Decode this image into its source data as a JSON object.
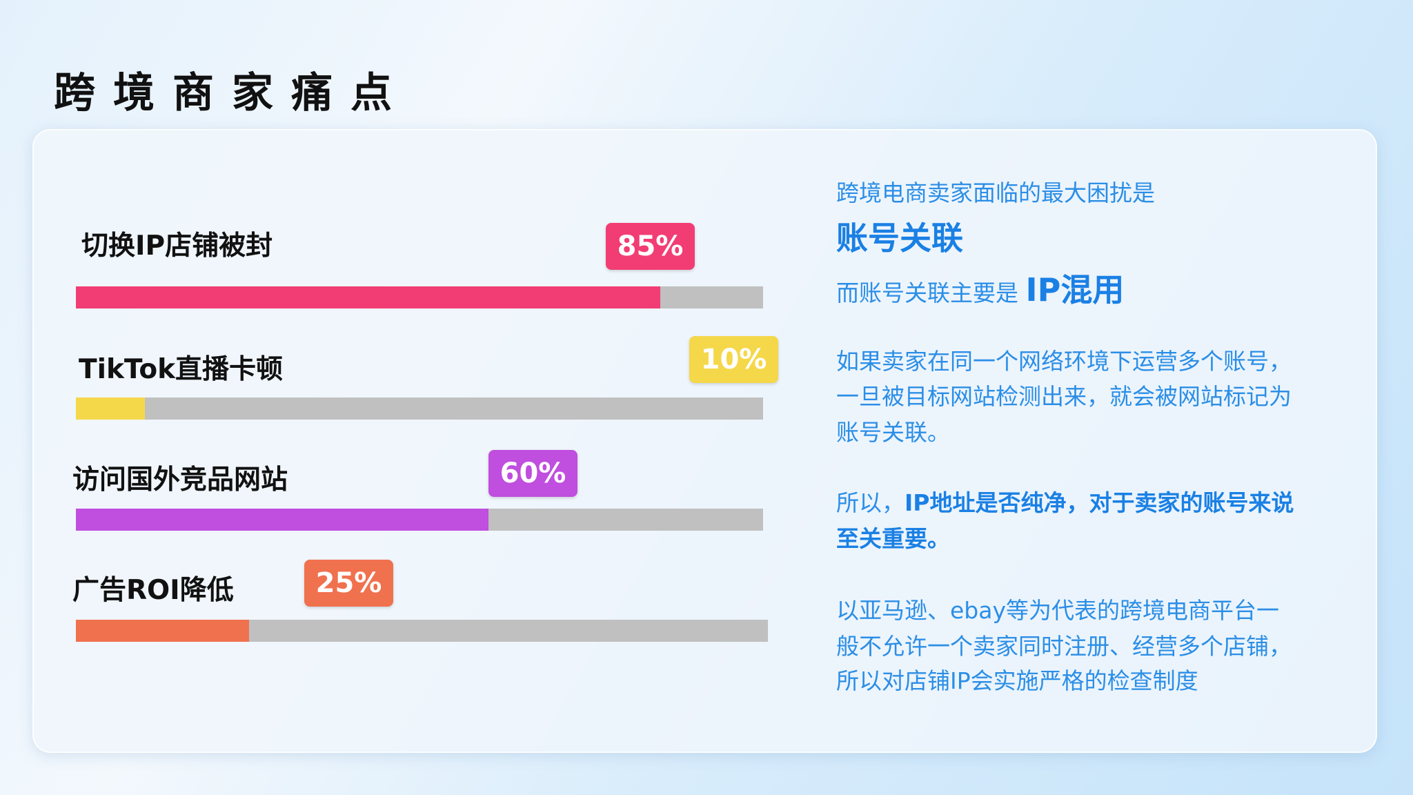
{
  "title": "跨境商家痛点",
  "items": [
    {
      "label": "切换IP店铺被封",
      "percent_label": "85%",
      "value": 85,
      "color": "#f23d74"
    },
    {
      "label": "TikTok直播卡顿",
      "percent_label": "10%",
      "value": 10,
      "color": "#f5d84a"
    },
    {
      "label": "访问国外竞品网站",
      "percent_label": "60%",
      "value": 60,
      "color": "#c04ede"
    },
    {
      "label": "广告ROI降低",
      "percent_label": "25%",
      "value": 25,
      "color": "#f0714e"
    }
  ],
  "track_color": "#c0c0c0",
  "text": {
    "line1": "跨境电商卖家面临的最大困扰是",
    "line2": "账号关联",
    "line3_prefix": "而账号关联主要是",
    "line3_emph": "IP混用",
    "para1": [
      "如果卖家在同一个网络环境下运营多个账号，",
      "一旦被目标网站检测出来，就会被网站标记为",
      "账号关联。"
    ],
    "para2_prefix": "所以，",
    "para2_emph1": "IP地址是否纯净，对于卖家的账号来说",
    "para2_emph2": "至关重要。",
    "para3": [
      "以亚马逊、ebay等为代表的跨境电商平台一",
      "般不允许一个卖家同时注册、经营多个店铺，",
      "所以对店铺IP会实施严格的检查制度"
    ]
  }
}
